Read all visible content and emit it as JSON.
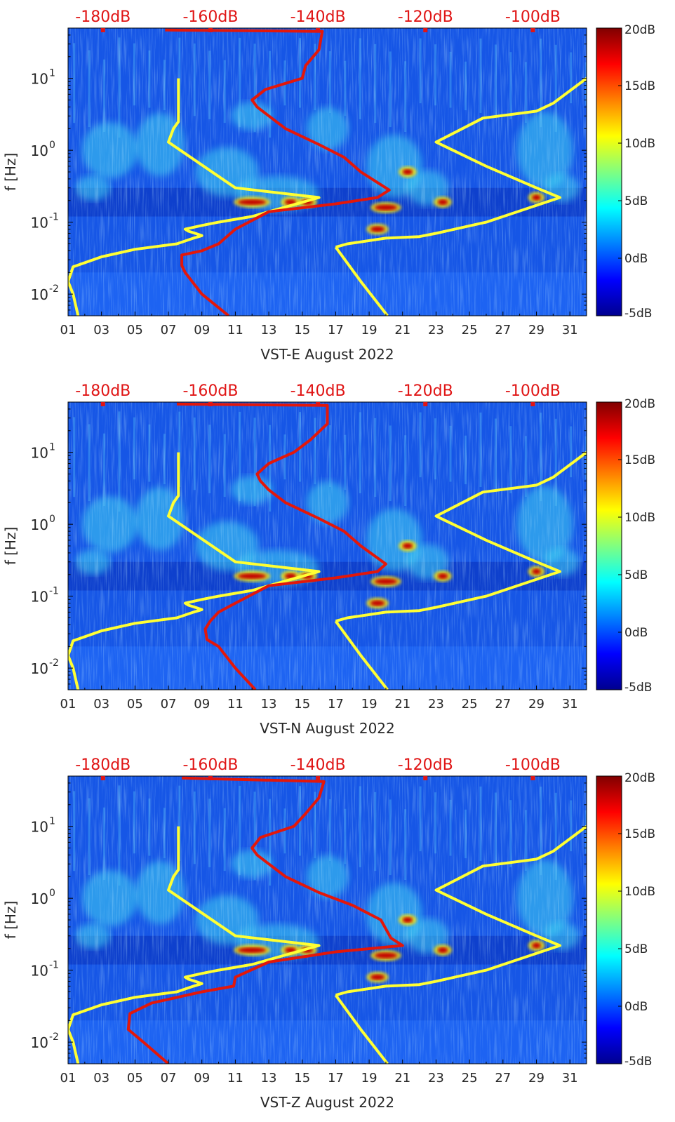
{
  "colors": {
    "noise_model_curve": "#ffff33",
    "median_psd_curve": "#e3170a",
    "top_axis_text": "#e01515",
    "colormap": [
      "#00008f",
      "#0000ff",
      "#0080ff",
      "#00ffff",
      "#80ff80",
      "#ffff00",
      "#ff8000",
      "#ff0000",
      "#800000"
    ]
  },
  "chart_data": [
    {
      "type": "heatmap",
      "title": "",
      "xlabel": "VST-E August 2022",
      "ylabel": "f [Hz]",
      "x_ticks": [
        "01",
        "03",
        "05",
        "07",
        "09",
        "11",
        "13",
        "15",
        "17",
        "19",
        "21",
        "23",
        "25",
        "27",
        "29",
        "31"
      ],
      "xlim": [
        1,
        32
      ],
      "y_scale": "log",
      "ylim": [
        0.005,
        50
      ],
      "y_ticks": [
        {
          "base": "10",
          "exp": "-2"
        },
        {
          "base": "10",
          "exp": "-1"
        },
        {
          "base": "10",
          "exp": "0"
        },
        {
          "base": "10",
          "exp": "1"
        }
      ],
      "top_axis_ticks": [
        "-180dB",
        "-160dB",
        "-140dB",
        "-120dB",
        "-100dB"
      ],
      "top_axis_range_db": [
        -186.5,
        -90
      ],
      "colorbar": {
        "ticks": [
          "20dB",
          "15dB",
          "10dB",
          "5dB",
          "0dB",
          "-5dB"
        ],
        "range_db": [
          -5,
          20
        ]
      },
      "series": [
        {
          "points": [
            [
              1.0,
              0.015
            ],
            [
              1.3,
              0.024
            ],
            [
              3.0,
              0.033
            ],
            [
              5.0,
              0.042
            ],
            [
              7.5,
              0.05
            ],
            [
              8.5,
              0.06
            ],
            [
              9.0,
              0.065
            ],
            [
              8.6,
              0.07
            ],
            [
              8.2,
              0.075
            ],
            [
              8.0,
              0.08
            ],
            [
              9.0,
              0.09
            ],
            [
              10.0,
              0.1
            ],
            [
              12.0,
              0.12
            ],
            [
              16.0,
              0.22
            ],
            [
              11.0,
              0.3
            ],
            [
              7.0,
              1.3
            ],
            [
              7.3,
              2.0
            ],
            [
              7.6,
              2.5
            ],
            [
              7.6,
              10.0
            ]
          ]
        },
        {
          "points": [
            [
              1.0,
              0.015
            ],
            [
              1.3,
              0.01
            ],
            [
              1.6,
              0.005
            ]
          ]
        },
        {
          "points": [
            [
              17.0,
              0.045
            ],
            [
              17.7,
              0.05
            ],
            [
              20.0,
              0.06
            ],
            [
              22.0,
              0.063
            ],
            [
              23.0,
              0.07
            ],
            [
              26.0,
              0.1
            ],
            [
              30.4,
              0.22
            ],
            [
              29.0,
              0.3
            ],
            [
              26.0,
              0.6
            ],
            [
              23.0,
              1.3
            ],
            [
              25.8,
              2.8
            ],
            [
              29.0,
              3.5
            ],
            [
              30.0,
              4.5
            ],
            [
              32.0,
              10.0
            ]
          ]
        },
        {
          "points": [
            [
              17.0,
              0.045
            ],
            [
              18.5,
              0.015
            ],
            [
              20.1,
              0.005
            ]
          ]
        },
        {
          "points": [
            [
              10.6,
              0.005
            ],
            [
              9.0,
              0.01
            ],
            [
              8.0,
              0.02
            ],
            [
              7.8,
              0.025
            ],
            [
              7.8,
              0.035
            ],
            [
              9.0,
              0.04
            ],
            [
              10.0,
              0.05
            ],
            [
              11.0,
              0.08
            ],
            [
              13.0,
              0.14
            ],
            [
              17.0,
              0.18
            ],
            [
              19.5,
              0.22
            ],
            [
              20.2,
              0.28
            ],
            [
              18.5,
              0.5
            ],
            [
              17.5,
              0.8
            ],
            [
              16.0,
              1.2
            ],
            [
              14.0,
              2.0
            ],
            [
              13.0,
              3.0
            ],
            [
              12.3,
              4.0
            ],
            [
              12.0,
              5.0
            ],
            [
              12.8,
              7.0
            ],
            [
              15.0,
              10.0
            ],
            [
              15.2,
              15.0
            ],
            [
              16.0,
              25.0
            ],
            [
              16.2,
              45.0
            ],
            [
              6.8,
              47.0
            ]
          ]
        }
      ]
    },
    {
      "type": "heatmap",
      "title": "",
      "xlabel": "VST-N August 2022",
      "ylabel": "f [Hz]",
      "x_ticks": [
        "01",
        "03",
        "05",
        "07",
        "09",
        "11",
        "13",
        "15",
        "17",
        "19",
        "21",
        "23",
        "25",
        "27",
        "29",
        "31"
      ],
      "xlim": [
        1,
        32
      ],
      "y_scale": "log",
      "ylim": [
        0.005,
        50
      ],
      "y_ticks": [
        {
          "base": "10",
          "exp": "-2"
        },
        {
          "base": "10",
          "exp": "-1"
        },
        {
          "base": "10",
          "exp": "0"
        },
        {
          "base": "10",
          "exp": "1"
        }
      ],
      "top_axis_ticks": [
        "-180dB",
        "-160dB",
        "-140dB",
        "-120dB",
        "-100dB"
      ],
      "top_axis_range_db": [
        -186.5,
        -90
      ],
      "colorbar": {
        "ticks": [
          "20dB",
          "15dB",
          "10dB",
          "5dB",
          "0dB",
          "-5dB"
        ],
        "range_db": [
          -5,
          20
        ]
      },
      "series": [
        {
          "points": [
            [
              1.0,
              0.015
            ],
            [
              1.3,
              0.024
            ],
            [
              3.0,
              0.033
            ],
            [
              5.0,
              0.042
            ],
            [
              7.5,
              0.05
            ],
            [
              8.5,
              0.06
            ],
            [
              9.0,
              0.065
            ],
            [
              8.6,
              0.07
            ],
            [
              8.2,
              0.075
            ],
            [
              8.0,
              0.08
            ],
            [
              9.0,
              0.09
            ],
            [
              10.0,
              0.1
            ],
            [
              12.0,
              0.12
            ],
            [
              16.0,
              0.22
            ],
            [
              11.0,
              0.3
            ],
            [
              7.0,
              1.3
            ],
            [
              7.3,
              2.0
            ],
            [
              7.6,
              2.5
            ],
            [
              7.6,
              10.0
            ]
          ]
        },
        {
          "points": [
            [
              1.0,
              0.015
            ],
            [
              1.3,
              0.01
            ],
            [
              1.6,
              0.005
            ]
          ]
        },
        {
          "points": [
            [
              17.0,
              0.045
            ],
            [
              17.7,
              0.05
            ],
            [
              20.0,
              0.06
            ],
            [
              22.0,
              0.063
            ],
            [
              23.0,
              0.07
            ],
            [
              26.0,
              0.1
            ],
            [
              30.4,
              0.22
            ],
            [
              29.0,
              0.3
            ],
            [
              26.0,
              0.6
            ],
            [
              23.0,
              1.3
            ],
            [
              25.8,
              2.8
            ],
            [
              29.0,
              3.5
            ],
            [
              30.0,
              4.5
            ],
            [
              32.0,
              10.0
            ]
          ]
        },
        {
          "points": [
            [
              17.0,
              0.045
            ],
            [
              18.5,
              0.015
            ],
            [
              20.1,
              0.005
            ]
          ]
        },
        {
          "points": [
            [
              12.2,
              0.005
            ],
            [
              11.0,
              0.01
            ],
            [
              10.0,
              0.02
            ],
            [
              9.3,
              0.025
            ],
            [
              9.2,
              0.035
            ],
            [
              9.5,
              0.045
            ],
            [
              10.0,
              0.06
            ],
            [
              11.0,
              0.08
            ],
            [
              13.0,
              0.14
            ],
            [
              17.0,
              0.18
            ],
            [
              19.5,
              0.22
            ],
            [
              20.0,
              0.28
            ],
            [
              18.5,
              0.5
            ],
            [
              17.5,
              0.8
            ],
            [
              16.0,
              1.2
            ],
            [
              14.0,
              2.0
            ],
            [
              13.0,
              3.0
            ],
            [
              12.5,
              4.0
            ],
            [
              12.3,
              5.0
            ],
            [
              13.0,
              7.0
            ],
            [
              14.5,
              10.0
            ],
            [
              15.5,
              15.0
            ],
            [
              16.5,
              25.0
            ],
            [
              16.5,
              45.0
            ],
            [
              7.5,
              47.0
            ]
          ]
        }
      ]
    },
    {
      "type": "heatmap",
      "title": "",
      "xlabel": "VST-Z August 2022",
      "ylabel": "f [Hz]",
      "x_ticks": [
        "01",
        "03",
        "05",
        "07",
        "09",
        "11",
        "13",
        "15",
        "17",
        "19",
        "21",
        "23",
        "25",
        "27",
        "29",
        "31"
      ],
      "xlim": [
        1,
        32
      ],
      "y_scale": "log",
      "ylim": [
        0.005,
        50
      ],
      "y_ticks": [
        {
          "base": "10",
          "exp": "-2"
        },
        {
          "base": "10",
          "exp": "-1"
        },
        {
          "base": "10",
          "exp": "0"
        },
        {
          "base": "10",
          "exp": "1"
        }
      ],
      "top_axis_ticks": [
        "-180dB",
        "-160dB",
        "-140dB",
        "-120dB",
        "-100dB"
      ],
      "top_axis_range_db": [
        -186.5,
        -90
      ],
      "colorbar": {
        "ticks": [
          "20dB",
          "15dB",
          "10dB",
          "5dB",
          "0dB",
          "-5dB"
        ],
        "range_db": [
          -5,
          20
        ]
      },
      "series": [
        {
          "points": [
            [
              1.0,
              0.015
            ],
            [
              1.3,
              0.024
            ],
            [
              3.0,
              0.033
            ],
            [
              5.0,
              0.042
            ],
            [
              7.5,
              0.05
            ],
            [
              8.5,
              0.06
            ],
            [
              9.0,
              0.065
            ],
            [
              8.6,
              0.07
            ],
            [
              8.2,
              0.075
            ],
            [
              8.0,
              0.08
            ],
            [
              9.0,
              0.09
            ],
            [
              10.0,
              0.1
            ],
            [
              12.0,
              0.12
            ],
            [
              16.0,
              0.22
            ],
            [
              11.0,
              0.3
            ],
            [
              7.0,
              1.3
            ],
            [
              7.3,
              2.0
            ],
            [
              7.6,
              2.5
            ],
            [
              7.6,
              10.0
            ]
          ]
        },
        {
          "points": [
            [
              1.0,
              0.015
            ],
            [
              1.3,
              0.01
            ],
            [
              1.6,
              0.005
            ]
          ]
        },
        {
          "points": [
            [
              17.0,
              0.045
            ],
            [
              17.7,
              0.05
            ],
            [
              20.0,
              0.06
            ],
            [
              22.0,
              0.063
            ],
            [
              23.0,
              0.07
            ],
            [
              26.0,
              0.1
            ],
            [
              30.4,
              0.22
            ],
            [
              29.0,
              0.3
            ],
            [
              26.0,
              0.6
            ],
            [
              23.0,
              1.3
            ],
            [
              25.8,
              2.8
            ],
            [
              29.0,
              3.5
            ],
            [
              30.0,
              4.5
            ],
            [
              32.0,
              10.0
            ]
          ]
        },
        {
          "points": [
            [
              17.0,
              0.045
            ],
            [
              18.5,
              0.015
            ],
            [
              20.1,
              0.005
            ]
          ]
        },
        {
          "points": [
            [
              7.0,
              0.005
            ],
            [
              5.5,
              0.01
            ],
            [
              4.6,
              0.015
            ],
            [
              4.7,
              0.025
            ],
            [
              6.0,
              0.035
            ],
            [
              9.0,
              0.05
            ],
            [
              10.9,
              0.06
            ],
            [
              11.0,
              0.08
            ],
            [
              13.0,
              0.13
            ],
            [
              17.0,
              0.18
            ],
            [
              21.0,
              0.22
            ],
            [
              20.3,
              0.28
            ],
            [
              19.7,
              0.5
            ],
            [
              18.0,
              0.8
            ],
            [
              16.0,
              1.2
            ],
            [
              14.0,
              2.0
            ],
            [
              13.0,
              3.0
            ],
            [
              12.3,
              4.0
            ],
            [
              12.0,
              5.0
            ],
            [
              12.5,
              7.0
            ],
            [
              14.5,
              10.0
            ],
            [
              15.2,
              15.0
            ],
            [
              16.0,
              25.0
            ],
            [
              16.3,
              42.0
            ],
            [
              7.8,
              47.0
            ]
          ]
        }
      ]
    }
  ]
}
